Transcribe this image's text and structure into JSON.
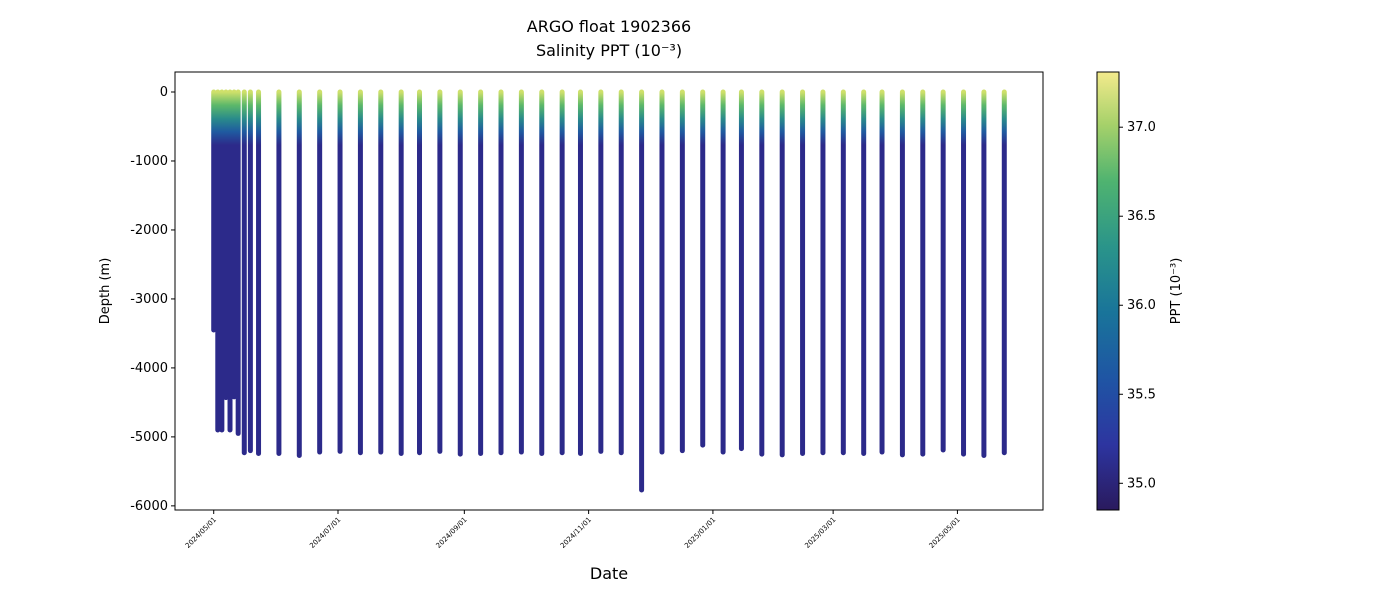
{
  "chart_data": {
    "type": "scatter",
    "title": "ARGO float 1902366",
    "subtitle": "Salinity PPT (10⁻³)",
    "x_label": "Date",
    "y_label": "Depth (m)",
    "x": [
      "2024/05/01",
      "2024/05/03",
      "2024/05/05",
      "2024/05/07",
      "2024/05/09",
      "2024/05/11",
      "2024/05/13",
      "2024/05/16",
      "2024/05/19",
      "2024/05/23",
      "2024/06/02",
      "2024/06/12",
      "2024/06/22",
      "2024/07/02",
      "2024/07/12",
      "2024/07/22",
      "2024/08/01",
      "2024/08/10",
      "2024/08/20",
      "2024/08/30",
      "2024/09/09",
      "2024/09/19",
      "2024/09/29",
      "2024/10/09",
      "2024/10/19",
      "2024/10/28",
      "2024/11/07",
      "2024/11/17",
      "2024/11/27",
      "2024/12/07",
      "2024/12/17",
      "2024/12/27",
      "2025/01/06",
      "2025/01/15",
      "2025/01/25",
      "2025/02/04",
      "2025/02/14",
      "2025/02/24",
      "2025/03/06",
      "2025/03/16",
      "2025/03/25",
      "2025/04/04",
      "2025/04/14",
      "2025/04/24",
      "2025/05/04",
      "2025/05/14",
      "2025/05/24"
    ],
    "values": [
      -3450,
      -4900,
      -4900,
      -4430,
      -4900,
      -4420,
      -4950,
      -5230,
      -5200,
      -5240,
      -5240,
      -5270,
      -5220,
      -5210,
      -5230,
      -5220,
      -5240,
      -5230,
      -5210,
      -5250,
      -5240,
      -5230,
      -5220,
      -5240,
      -5230,
      -5240,
      -5210,
      -5230,
      -5770,
      -5220,
      -5200,
      -5120,
      -5220,
      -5170,
      -5250,
      -5260,
      -5240,
      -5230,
      -5230,
      -5240,
      -5220,
      -5260,
      -5250,
      -5190,
      -5250,
      -5270,
      -5230
    ],
    "xlim": [
      "2024/04/12",
      "2025/06/12"
    ],
    "xticks": [
      "2024/05/01",
      "2024/07/01",
      "2024/09/01",
      "2024/11/01",
      "2025/01/01",
      "2025/03/01",
      "2025/05/01"
    ],
    "ylim": [
      -6060,
      290
    ],
    "yticks": [
      0,
      -1000,
      -2000,
      -3000,
      -4000,
      -5000,
      -6000
    ],
    "colorbar": {
      "label": "PPT (10⁻³)",
      "lim": [
        34.85,
        37.31
      ],
      "ticks": [
        {
          "value": 35,
          "label": "35.0"
        },
        {
          "value": 35.5,
          "label": "35.5"
        },
        {
          "value": 36,
          "label": "36.0"
        },
        {
          "value": 36.5,
          "label": "36.5"
        },
        {
          "value": 37,
          "label": "37.0"
        }
      ]
    }
  }
}
